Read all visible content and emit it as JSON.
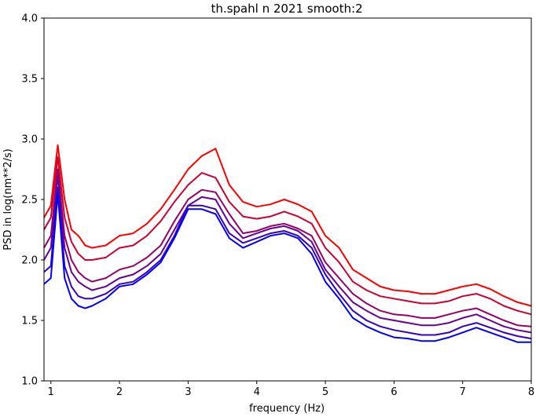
{
  "chart_data": {
    "type": "line",
    "title": "th.spahl n 2021 smooth:2",
    "xlabel": "frequency (Hz)",
    "ylabel": "PSD in log(nm**2/s)",
    "xlim": [
      0.9,
      8.0
    ],
    "ylim": [
      1.0,
      4.0
    ],
    "xticks": [
      1,
      2,
      3,
      4,
      5,
      6,
      7,
      8
    ],
    "yticks": [
      1.0,
      1.5,
      2.0,
      2.5,
      3.0,
      3.5,
      4.0
    ],
    "xtick_labels": [
      "1",
      "2",
      "3",
      "4",
      "5",
      "6",
      "7",
      "8"
    ],
    "ytick_labels": [
      "1.0",
      "1.5",
      "2.0",
      "2.5",
      "3.0",
      "3.5",
      "4.0"
    ],
    "grid": false,
    "legend": "none",
    "x": [
      0.9,
      1.0,
      1.1,
      1.2,
      1.3,
      1.4,
      1.5,
      1.6,
      1.8,
      2.0,
      2.2,
      2.4,
      2.6,
      2.8,
      3.0,
      3.2,
      3.4,
      3.6,
      3.8,
      4.0,
      4.2,
      4.4,
      4.6,
      4.8,
      5.0,
      5.2,
      5.4,
      5.6,
      5.8,
      6.0,
      6.2,
      6.4,
      6.6,
      6.8,
      7.0,
      7.2,
      7.4,
      7.6,
      7.8,
      8.0
    ],
    "series": [
      {
        "color": "#ff0000",
        "values": [
          2.35,
          2.45,
          2.95,
          2.5,
          2.25,
          2.2,
          2.12,
          2.1,
          2.12,
          2.2,
          2.22,
          2.3,
          2.42,
          2.58,
          2.75,
          2.86,
          2.92,
          2.62,
          2.48,
          2.44,
          2.46,
          2.5,
          2.46,
          2.4,
          2.2,
          2.1,
          1.92,
          1.85,
          1.78,
          1.75,
          1.74,
          1.72,
          1.72,
          1.75,
          1.78,
          1.8,
          1.76,
          1.7,
          1.65,
          1.62
        ]
      },
      {
        "color": "#cc0033",
        "values": [
          2.25,
          2.35,
          2.85,
          2.35,
          2.15,
          2.05,
          2.0,
          2.0,
          2.02,
          2.1,
          2.12,
          2.2,
          2.32,
          2.48,
          2.62,
          2.72,
          2.68,
          2.48,
          2.36,
          2.34,
          2.36,
          2.4,
          2.36,
          2.3,
          2.1,
          1.98,
          1.82,
          1.75,
          1.7,
          1.68,
          1.66,
          1.64,
          1.64,
          1.66,
          1.7,
          1.72,
          1.68,
          1.62,
          1.58,
          1.55
        ]
      },
      {
        "color": "#990066",
        "values": [
          2.1,
          2.2,
          2.75,
          2.2,
          2.0,
          1.9,
          1.85,
          1.82,
          1.85,
          1.92,
          1.95,
          2.02,
          2.12,
          2.32,
          2.5,
          2.58,
          2.56,
          2.38,
          2.22,
          2.24,
          2.28,
          2.3,
          2.26,
          2.2,
          1.98,
          1.85,
          1.72,
          1.64,
          1.58,
          1.55,
          1.54,
          1.52,
          1.52,
          1.55,
          1.58,
          1.6,
          1.55,
          1.5,
          1.46,
          1.45
        ]
      },
      {
        "color": "#660099",
        "values": [
          2.0,
          2.1,
          2.7,
          2.1,
          1.9,
          1.82,
          1.78,
          1.75,
          1.78,
          1.85,
          1.88,
          1.95,
          2.05,
          2.25,
          2.45,
          2.52,
          2.5,
          2.3,
          2.18,
          2.22,
          2.26,
          2.28,
          2.24,
          2.15,
          1.92,
          1.78,
          1.65,
          1.58,
          1.52,
          1.5,
          1.48,
          1.46,
          1.46,
          1.48,
          1.52,
          1.55,
          1.5,
          1.45,
          1.42,
          1.4
        ]
      },
      {
        "color": "#3300cc",
        "values": [
          1.9,
          1.95,
          2.6,
          1.95,
          1.78,
          1.7,
          1.68,
          1.68,
          1.72,
          1.8,
          1.82,
          1.9,
          2.0,
          2.2,
          2.45,
          2.45,
          2.42,
          2.22,
          2.14,
          2.18,
          2.22,
          2.24,
          2.2,
          2.1,
          1.88,
          1.72,
          1.58,
          1.5,
          1.45,
          1.42,
          1.4,
          1.38,
          1.38,
          1.4,
          1.45,
          1.48,
          1.44,
          1.4,
          1.37,
          1.35
        ]
      },
      {
        "color": "#0000ff",
        "values": [
          1.8,
          1.85,
          2.55,
          1.85,
          1.68,
          1.62,
          1.6,
          1.62,
          1.68,
          1.78,
          1.8,
          1.88,
          1.98,
          2.18,
          2.42,
          2.42,
          2.38,
          2.18,
          2.1,
          2.15,
          2.2,
          2.22,
          2.18,
          2.05,
          1.82,
          1.68,
          1.52,
          1.45,
          1.4,
          1.36,
          1.35,
          1.33,
          1.33,
          1.36,
          1.4,
          1.44,
          1.4,
          1.36,
          1.32,
          1.32
        ]
      }
    ]
  }
}
